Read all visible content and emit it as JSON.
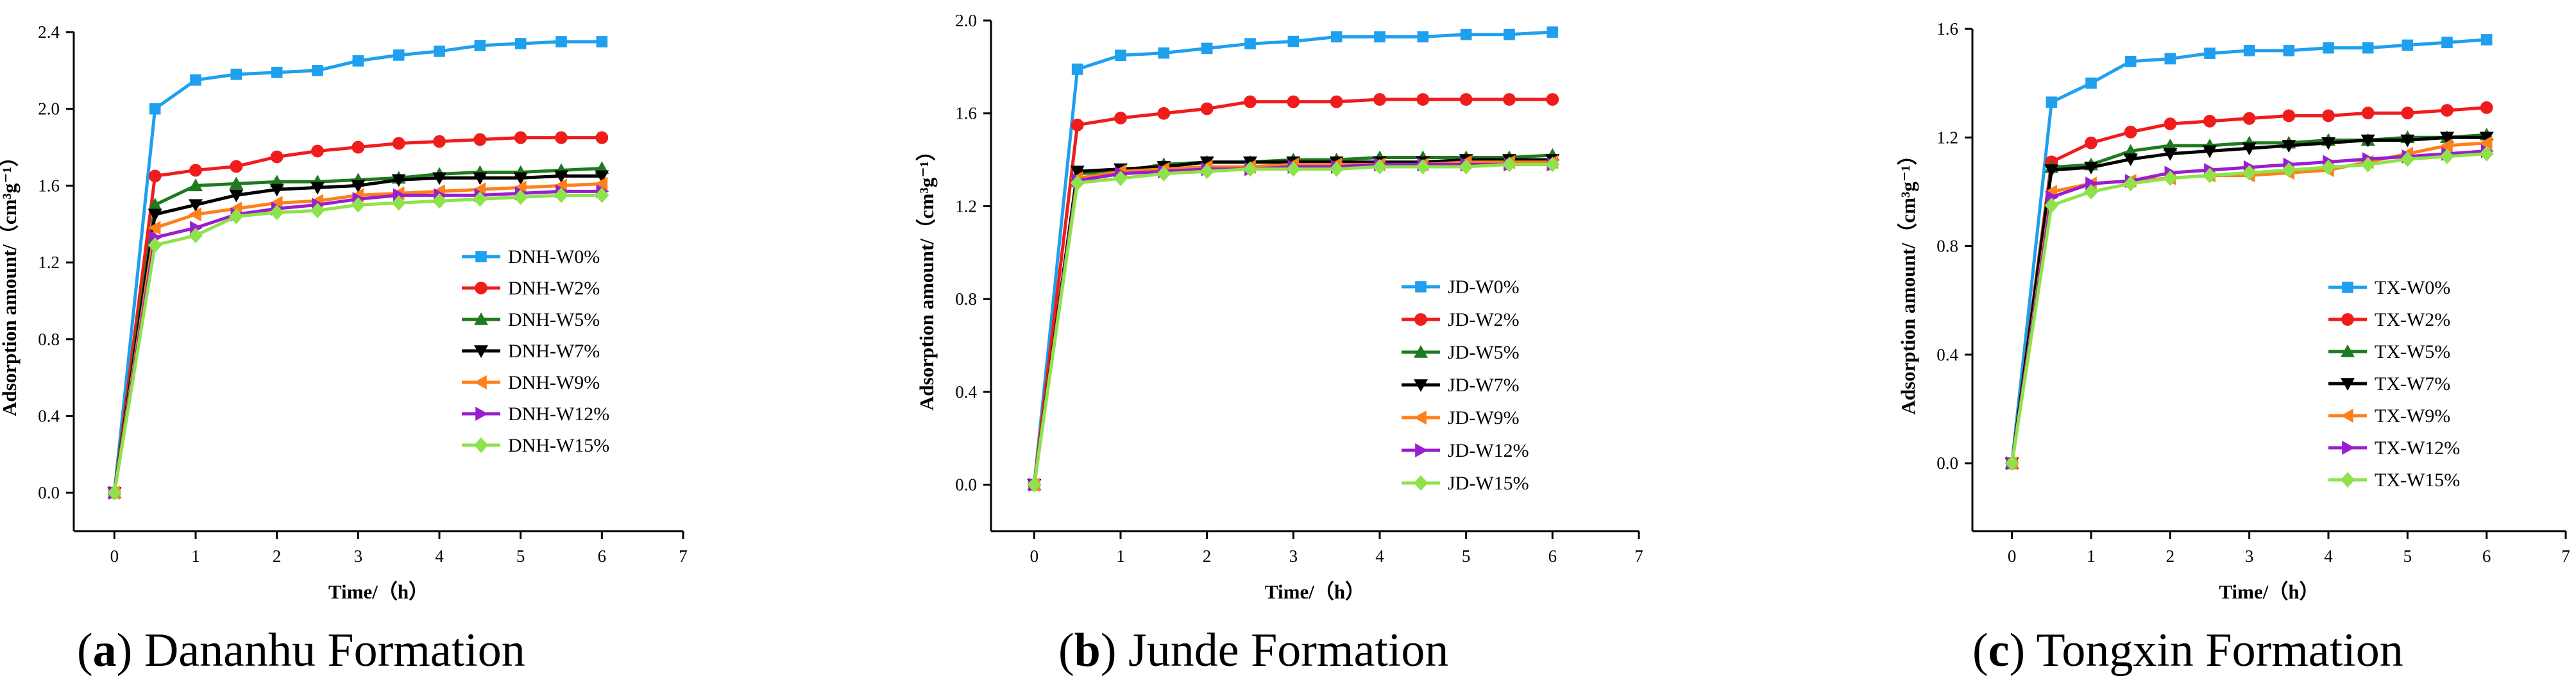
{
  "x_values": [
    0,
    0.5,
    1,
    1.5,
    2,
    2.5,
    3,
    3.5,
    4,
    4.5,
    5,
    5.5,
    6
  ],
  "colors": {
    "W0": "#1ea0ee",
    "W2": "#f01c1c",
    "W5": "#1e7a1e",
    "W7": "#000000",
    "W9": "#ff7f1a",
    "W12": "#9a1ecf",
    "W15": "#8ee34a"
  },
  "chart_data": [
    {
      "type": "line",
      "panel_label": "a",
      "panel_name": "Dananhu Formation",
      "xlabel": "Time/（h）",
      "ylabel": "Adsorption amount/（cm³g⁻¹）",
      "xlim": [
        -0.5,
        7
      ],
      "ylim": [
        -0.2,
        2.4
      ],
      "xticks": [
        0,
        1,
        2,
        3,
        4,
        5,
        6,
        7
      ],
      "yticks": [
        0.0,
        0.4,
        0.8,
        1.2,
        1.6,
        2.0,
        2.4
      ],
      "ytick_labels": [
        "0.0",
        "0.4",
        "0.8",
        "1.2",
        "1.6",
        "2.0",
        "2.4"
      ],
      "legend_position": "right",
      "series": [
        {
          "name": "DNH-W0%",
          "key": "W0",
          "marker": "square",
          "values": [
            0,
            2.0,
            2.15,
            2.18,
            2.19,
            2.2,
            2.25,
            2.28,
            2.3,
            2.33,
            2.34,
            2.35,
            2.35
          ]
        },
        {
          "name": "DNH-W2%",
          "key": "W2",
          "marker": "circle",
          "values": [
            0,
            1.65,
            1.68,
            1.7,
            1.75,
            1.78,
            1.8,
            1.82,
            1.83,
            1.84,
            1.85,
            1.85,
            1.85
          ]
        },
        {
          "name": "DNH-W5%",
          "key": "W5",
          "marker": "triangle-up",
          "values": [
            0,
            1.5,
            1.6,
            1.61,
            1.62,
            1.62,
            1.63,
            1.64,
            1.66,
            1.67,
            1.67,
            1.68,
            1.69
          ]
        },
        {
          "name": "DNH-W7%",
          "key": "W7",
          "marker": "triangle-down",
          "values": [
            0,
            1.45,
            1.5,
            1.55,
            1.58,
            1.59,
            1.6,
            1.63,
            1.64,
            1.64,
            1.64,
            1.65,
            1.65
          ]
        },
        {
          "name": "DNH-W9%",
          "key": "W9",
          "marker": "triangle-left",
          "values": [
            0,
            1.38,
            1.45,
            1.48,
            1.51,
            1.52,
            1.55,
            1.56,
            1.57,
            1.58,
            1.59,
            1.6,
            1.61
          ]
        },
        {
          "name": "DNH-W12%",
          "key": "W12",
          "marker": "triangle-right",
          "values": [
            0,
            1.33,
            1.38,
            1.45,
            1.48,
            1.5,
            1.53,
            1.55,
            1.55,
            1.55,
            1.56,
            1.57,
            1.57
          ]
        },
        {
          "name": "DNH-W15%",
          "key": "W15",
          "marker": "diamond",
          "values": [
            0,
            1.29,
            1.34,
            1.44,
            1.46,
            1.47,
            1.5,
            1.51,
            1.52,
            1.53,
            1.54,
            1.55,
            1.55
          ]
        }
      ]
    },
    {
      "type": "line",
      "panel_label": "b",
      "panel_name": "Junde Formation",
      "xlabel": "Time/（h）",
      "ylabel": "Adsorption amount/（cm³g⁻¹）",
      "xlim": [
        -0.5,
        7
      ],
      "ylim": [
        -0.2,
        2.0
      ],
      "xticks": [
        0,
        1,
        2,
        3,
        4,
        5,
        6,
        7
      ],
      "yticks": [
        0.0,
        0.4,
        0.8,
        1.2,
        1.6,
        2.0
      ],
      "ytick_labels": [
        "0.0",
        "0.4",
        "0.8",
        "1.2",
        "1.6",
        "2.0"
      ],
      "legend_position": "bottom-right",
      "series": [
        {
          "name": "JD-W0%",
          "key": "W0",
          "marker": "square",
          "values": [
            0,
            1.79,
            1.85,
            1.86,
            1.88,
            1.9,
            1.91,
            1.93,
            1.93,
            1.93,
            1.94,
            1.94,
            1.95
          ]
        },
        {
          "name": "JD-W2%",
          "key": "W2",
          "marker": "circle",
          "values": [
            0,
            1.55,
            1.58,
            1.6,
            1.62,
            1.65,
            1.65,
            1.65,
            1.66,
            1.66,
            1.66,
            1.66,
            1.66
          ]
        },
        {
          "name": "JD-W5%",
          "key": "W5",
          "marker": "triangle-up",
          "values": [
            0,
            1.34,
            1.35,
            1.38,
            1.39,
            1.39,
            1.4,
            1.4,
            1.41,
            1.41,
            1.41,
            1.41,
            1.42
          ]
        },
        {
          "name": "JD-W7%",
          "key": "W7",
          "marker": "triangle-down",
          "values": [
            0,
            1.35,
            1.36,
            1.37,
            1.39,
            1.39,
            1.39,
            1.39,
            1.39,
            1.39,
            1.4,
            1.4,
            1.4
          ]
        },
        {
          "name": "JD-W9%",
          "key": "W9",
          "marker": "triangle-left",
          "values": [
            0,
            1.32,
            1.35,
            1.36,
            1.37,
            1.37,
            1.38,
            1.38,
            1.38,
            1.38,
            1.39,
            1.39,
            1.39
          ]
        },
        {
          "name": "JD-W12%",
          "key": "W12",
          "marker": "triangle-right",
          "values": [
            0,
            1.31,
            1.34,
            1.35,
            1.36,
            1.36,
            1.37,
            1.37,
            1.38,
            1.38,
            1.38,
            1.38,
            1.38
          ]
        },
        {
          "name": "JD-W15%",
          "key": "W15",
          "marker": "diamond",
          "values": [
            0,
            1.3,
            1.32,
            1.34,
            1.35,
            1.36,
            1.36,
            1.36,
            1.37,
            1.37,
            1.37,
            1.38,
            1.38
          ]
        }
      ]
    },
    {
      "type": "line",
      "panel_label": "c",
      "panel_name": "Tongxin Formation",
      "xlabel": "Time/（h）",
      "ylabel": "Adsorption amount/（cm³g⁻¹）",
      "xlim": [
        -0.5,
        7
      ],
      "ylim": [
        -0.25,
        1.6
      ],
      "xticks": [
        0,
        1,
        2,
        3,
        4,
        5,
        6,
        7
      ],
      "yticks": [
        0.0,
        0.4,
        0.8,
        1.2,
        1.6
      ],
      "ytick_labels": [
        "0.0",
        "0.4",
        "0.8",
        "1.2",
        "1.6"
      ],
      "legend_position": "bottom-right",
      "series": [
        {
          "name": "TX-W0%",
          "key": "W0",
          "marker": "square",
          "values": [
            0,
            1.33,
            1.4,
            1.48,
            1.49,
            1.51,
            1.52,
            1.52,
            1.53,
            1.53,
            1.54,
            1.55,
            1.56
          ]
        },
        {
          "name": "TX-W2%",
          "key": "W2",
          "marker": "circle",
          "values": [
            0,
            1.11,
            1.18,
            1.22,
            1.25,
            1.26,
            1.27,
            1.28,
            1.28,
            1.29,
            1.29,
            1.3,
            1.31
          ]
        },
        {
          "name": "TX-W5%",
          "key": "W5",
          "marker": "triangle-up",
          "values": [
            0,
            1.09,
            1.1,
            1.15,
            1.17,
            1.17,
            1.18,
            1.18,
            1.19,
            1.19,
            1.2,
            1.2,
            1.21
          ]
        },
        {
          "name": "TX-W7%",
          "key": "W7",
          "marker": "triangle-down",
          "values": [
            0,
            1.08,
            1.09,
            1.12,
            1.14,
            1.15,
            1.16,
            1.17,
            1.18,
            1.19,
            1.19,
            1.2,
            1.2
          ]
        },
        {
          "name": "TX-W9%",
          "key": "W9",
          "marker": "triangle-left",
          "values": [
            0,
            1.0,
            1.03,
            1.04,
            1.05,
            1.06,
            1.06,
            1.07,
            1.08,
            1.11,
            1.14,
            1.17,
            1.18
          ]
        },
        {
          "name": "TX-W12%",
          "key": "W12",
          "marker": "triangle-right",
          "values": [
            0,
            0.98,
            1.03,
            1.04,
            1.07,
            1.08,
            1.09,
            1.1,
            1.11,
            1.12,
            1.13,
            1.14,
            1.15
          ]
        },
        {
          "name": "TX-W15%",
          "key": "W15",
          "marker": "diamond",
          "values": [
            0,
            0.95,
            1.0,
            1.03,
            1.05,
            1.06,
            1.07,
            1.08,
            1.09,
            1.1,
            1.12,
            1.13,
            1.14
          ]
        }
      ]
    }
  ]
}
